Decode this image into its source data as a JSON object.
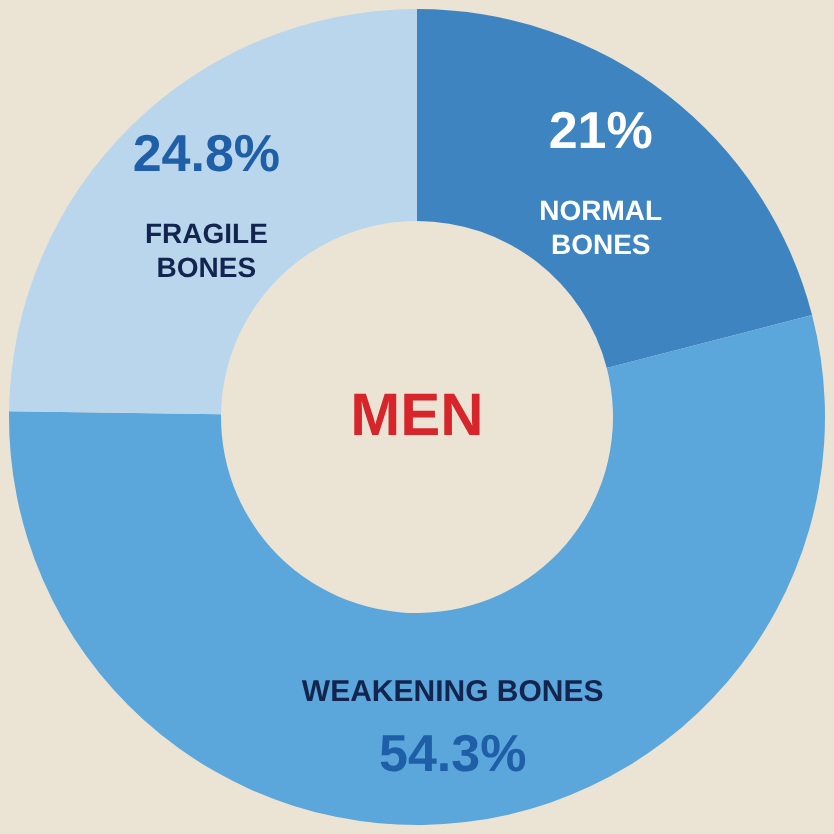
{
  "chart_data": {
    "type": "donut",
    "title": "MEN",
    "categories": [
      "NORMAL BONES",
      "WEAKENING BONES",
      "FRAGILE BONES"
    ],
    "values": [
      21,
      54.3,
      24.8
    ],
    "value_labels": [
      "21%",
      "54.3%",
      "24.8%"
    ],
    "colors": [
      "#3d84c0",
      "#5ba6da",
      "#b9d6ec"
    ]
  }
}
